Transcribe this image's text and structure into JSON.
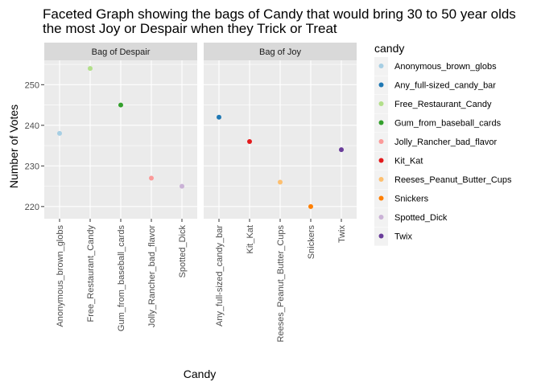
{
  "chart_data": {
    "type": "scatter",
    "title_lines": [
      "Faceted Graph showing the bags of Candy that would bring 30 to 50 year olds",
      "the most Joy or Despair when they Trick or Treat"
    ],
    "xlabel": "Candy",
    "ylabel": "Number of Votes",
    "ylim": [
      217,
      256
    ],
    "yticks": [
      220,
      230,
      240,
      250
    ],
    "grid": true,
    "legend_position": "right",
    "legend_title": "candy",
    "legend": [
      {
        "name": "Anonymous_brown_globs",
        "color": "#a6cee3"
      },
      {
        "name": "Any_full-sized_candy_bar",
        "color": "#1f78b4"
      },
      {
        "name": "Free_Restaurant_Candy",
        "color": "#b2df8a"
      },
      {
        "name": "Gum_from_baseball_cards",
        "color": "#33a02c"
      },
      {
        "name": "Jolly_Rancher_bad_flavor",
        "color": "#fb9a99"
      },
      {
        "name": "Kit_Kat",
        "color": "#e31a1c"
      },
      {
        "name": "Reeses_Peanut_Butter_Cups",
        "color": "#fdbf6f"
      },
      {
        "name": "Snickers",
        "color": "#ff7f00"
      },
      {
        "name": "Spotted_Dick",
        "color": "#cab2d6"
      },
      {
        "name": "Twix",
        "color": "#6a3d9a"
      }
    ],
    "facets": [
      {
        "strip": "Bag of Despair",
        "categories": [
          "Anonymous_brown_globs",
          "Free_Restaurant_Candy",
          "Gum_from_baseball_cards",
          "Jolly_Rancher_bad_flavor",
          "Spotted_Dick"
        ],
        "values": [
          238,
          254,
          245,
          227,
          225
        ],
        "colors": [
          "#a6cee3",
          "#b2df8a",
          "#33a02c",
          "#fb9a99",
          "#cab2d6"
        ]
      },
      {
        "strip": "Bag of Joy",
        "categories": [
          "Any_full-sized_candy_bar",
          "Kit_Kat",
          "Reeses_Peanut_Butter_Cups",
          "Snickers",
          "Twix"
        ],
        "values": [
          242,
          236,
          226,
          220,
          234
        ],
        "colors": [
          "#1f78b4",
          "#e31a1c",
          "#fdbf6f",
          "#ff7f00",
          "#6a3d9a"
        ]
      }
    ]
  }
}
